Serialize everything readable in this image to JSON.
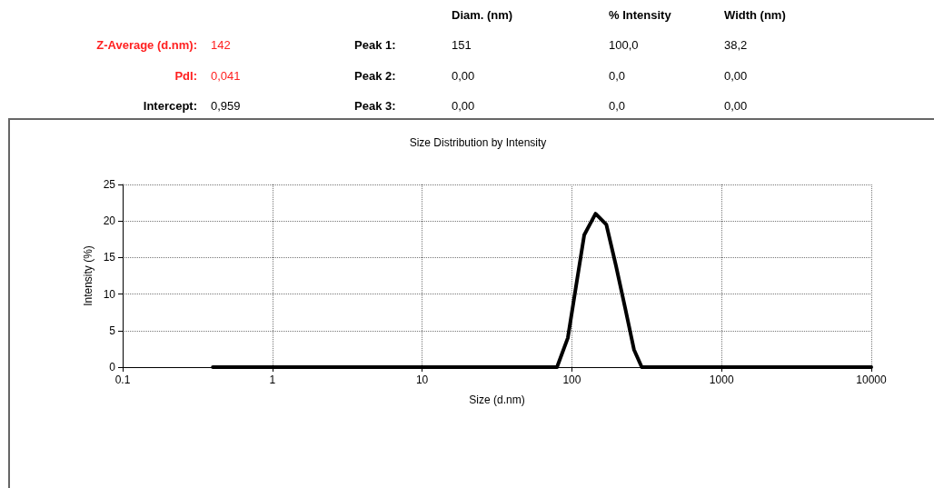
{
  "chart_data": {
    "type": "line",
    "title": "Size Distribution by Intensity",
    "xlabel": "Size (d.nm)",
    "ylabel": "Intensity (%)",
    "annotations": [
      "Diam. (nm)",
      "% Intensity",
      "Width (nm)",
      "Z-Average (d.nm):",
      "142",
      "Peak 1:",
      "151",
      "100,0",
      "38,2",
      "PdI:",
      "0,041",
      "Peak 2:",
      "0,00",
      "0,0",
      "0,00",
      "Intercept:",
      "0,959",
      "Peak 3:",
      "0,00",
      "0,0",
      "0,00"
    ],
    "log": "x",
    "grid": true,
    "marker": "none",
    "line_style": "solid",
    "xlim": [
      0.1,
      10000
    ],
    "xticks": [
      0.1,
      1,
      10,
      100,
      1000,
      10000
    ],
    "ylim": [
      0,
      25
    ],
    "yticks": [
      0,
      5,
      10,
      15,
      20,
      25
    ],
    "series": [
      {
        "color": "#000000",
        "x": [
          0.4,
          79.6,
          94,
          105,
          121,
          144,
          170,
          197,
          227,
          260,
          293,
          10000
        ],
        "values": [
          0,
          0,
          4.0,
          10.2,
          18.1,
          21.0,
          19.5,
          13.9,
          8.1,
          2.4,
          0,
          0
        ]
      }
    ]
  }
}
